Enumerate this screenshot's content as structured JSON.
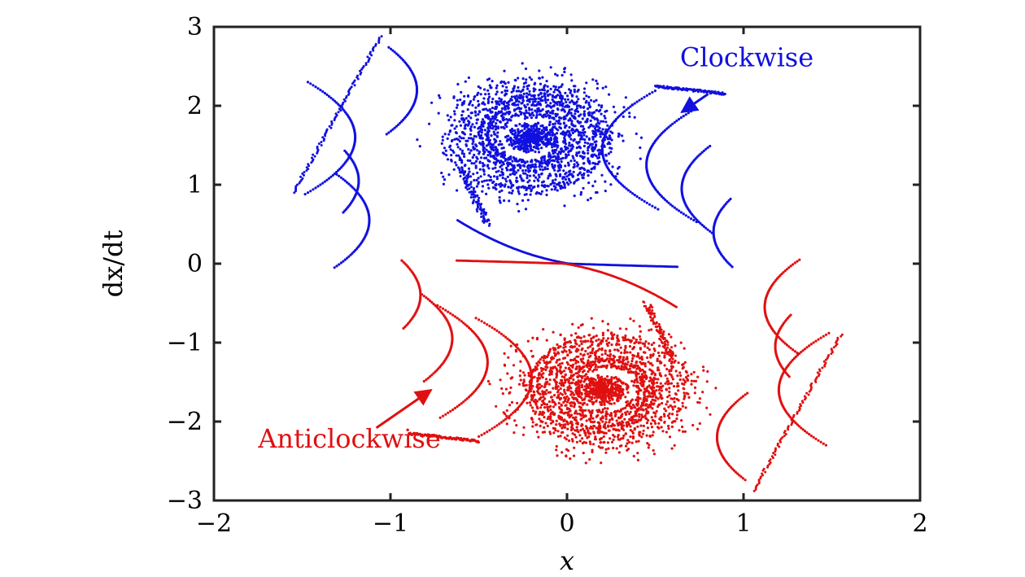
{
  "chart_data": {
    "type": "scatter",
    "xlabel": "x",
    "ylabel": "dx/dt",
    "xlim": [
      -2,
      2
    ],
    "ylim": [
      -3,
      3
    ],
    "xticks": [
      -2,
      -1,
      0,
      1,
      2
    ],
    "yticks": [
      -3,
      -2,
      -1,
      0,
      1,
      2,
      3
    ],
    "x_tick_labels": [
      "−2",
      "−1",
      "0",
      "1",
      "2"
    ],
    "y_tick_labels": [
      "−3",
      "−2",
      "−1",
      "0",
      "1",
      "2",
      "3"
    ],
    "grid": false,
    "legend": "none",
    "series": [
      {
        "color": "#1010e0",
        "focus": [
          -0.2,
          1.6
        ],
        "sign": 1
      },
      {
        "color": "#e01010",
        "focus": [
          0.2,
          -1.6
        ],
        "sign": -1
      }
    ],
    "annotations": [
      {
        "text": "Clockwise",
        "color": "#1010e0",
        "text_at": [
          0.64,
          2.5
        ],
        "arrow_from": [
          0.8,
          2.15
        ],
        "arrow_to": [
          0.65,
          1.92
        ]
      },
      {
        "text": "Anticlockwise",
        "color": "#e01010",
        "text_at": [
          -1.75,
          -2.33
        ],
        "arrow_from": [
          -1.08,
          -2.08
        ],
        "arrow_to": [
          -0.77,
          -1.6
        ]
      }
    ]
  }
}
